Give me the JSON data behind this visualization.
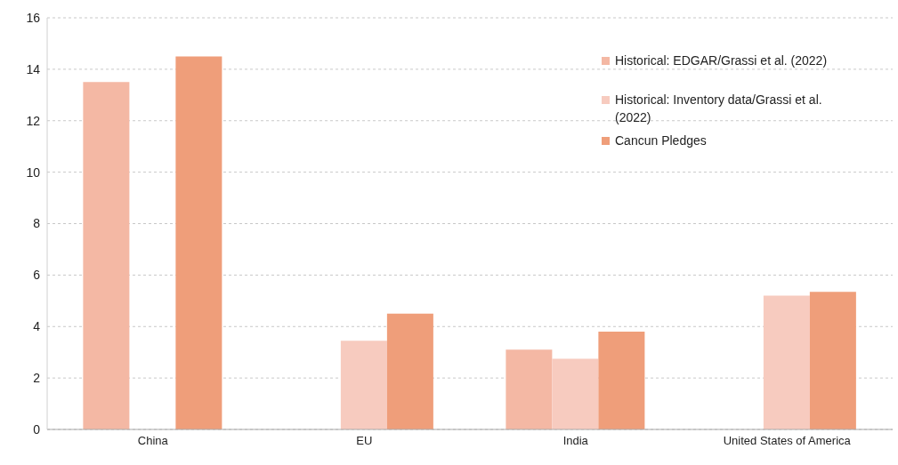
{
  "chart_data": {
    "type": "bar",
    "categories": [
      "China",
      "EU",
      "India",
      "United States of America"
    ],
    "series": [
      {
        "name": "Historical: EDGAR/Grassi et al. (2022)",
        "color": "#f4b8a4",
        "values": [
          13.5,
          null,
          3.1,
          null
        ]
      },
      {
        "name": "Historical: Inventory data/Grassi et al. (2022)",
        "color": "#f7cbbf",
        "values": [
          null,
          3.45,
          2.75,
          5.2
        ]
      },
      {
        "name": "Cancun Pledges",
        "color": "#ef9e7a",
        "values": [
          14.5,
          4.5,
          3.8,
          5.35
        ]
      }
    ],
    "ylim": [
      0,
      16
    ],
    "yticks": [
      0,
      2,
      4,
      6,
      8,
      10,
      12,
      14,
      16
    ],
    "grid": "y",
    "legend": "top right"
  }
}
